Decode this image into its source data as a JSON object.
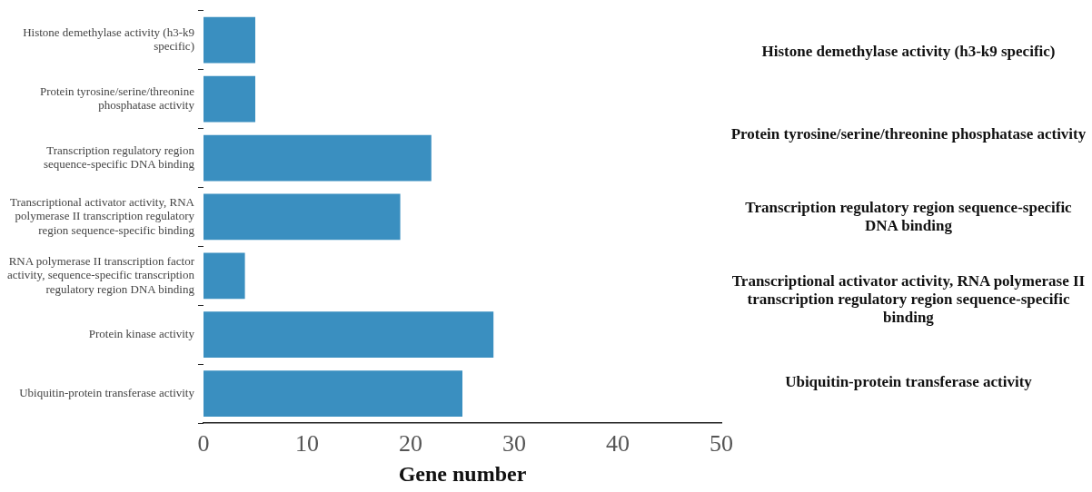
{
  "chart_data": {
    "type": "bar",
    "orientation": "horizontal",
    "xlabel": "Gene number",
    "categories": [
      "Histone demethylase activity (h3-k9 specific)",
      "Protein tyrosine/serine/threonine phosphatase activity",
      "Transcription regulatory region sequence-specific DNA binding",
      "Transcriptional activator activity, RNA polymerase II transcription regulatory region sequence-specific binding",
      "RNA polymerase II transcription factor activity, sequence-specific transcription regulatory region DNA binding",
      "Protein kinase activity",
      "Ubiquitin-protein transferase activity"
    ],
    "values": [
      5,
      5,
      22,
      19,
      4,
      28,
      25
    ],
    "color": "#3a8fc0",
    "xlim": [
      0,
      50
    ],
    "xticks": [
      0,
      10,
      20,
      30,
      40,
      50
    ],
    "grid": false,
    "legend": false,
    "annotations": [
      "Histone demethylase activity (h3-k9 specific)",
      "Protein tyrosine/serine/threonine phosphatase activity",
      "Transcription regulatory region sequence-specific DNA binding",
      "Transcriptional activator activity, RNA polymerase II transcription regulatory region sequence-specific binding",
      "Ubiquitin-protein transferase activity"
    ]
  }
}
